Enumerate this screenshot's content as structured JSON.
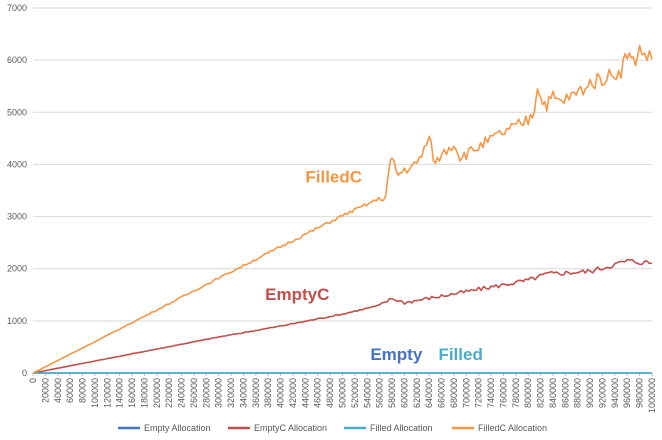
{
  "chart_data": {
    "type": "line",
    "title": "",
    "xlabel": "",
    "ylabel": "",
    "ylim": [
      0,
      7000
    ],
    "xlim": [
      0,
      1000000
    ],
    "y_ticks": [
      0,
      1000,
      2000,
      3000,
      4000,
      5000,
      6000,
      7000
    ],
    "x_tick_step": 20000,
    "grid": "horizontal",
    "legend_position": "bottom",
    "series": [
      {
        "name": "Empty Allocation",
        "color": "#4472C4",
        "x": [
          0,
          1000000
        ],
        "y": [
          0,
          0
        ]
      },
      {
        "name": "EmptyC Allocation",
        "color": "#C0504D",
        "x": [
          0,
          100000,
          200000,
          300000,
          400000,
          500000,
          560000,
          580000,
          600000,
          700000,
          800000,
          830000,
          900000,
          960000,
          1000000
        ],
        "y": [
          0,
          230,
          460,
          690,
          900,
          1130,
          1300,
          1430,
          1350,
          1560,
          1780,
          1900,
          1950,
          2150,
          2110
        ]
      },
      {
        "name": "Filled Allocation",
        "color": "#4BACC6",
        "x": [
          0,
          1000000
        ],
        "y": [
          0,
          0
        ]
      },
      {
        "name": "FilledC Allocation",
        "color": "#F79646",
        "x": [
          0,
          100000,
          200000,
          300000,
          400000,
          500000,
          570000,
          575000,
          580000,
          590000,
          600000,
          620000,
          640000,
          650000,
          660000,
          680000,
          690000,
          700000,
          750000,
          800000,
          810000,
          815000,
          820000,
          830000,
          840000,
          850000,
          870000,
          900000,
          950000,
          960000,
          970000,
          980000,
          1000000
        ],
        "y": [
          0,
          600,
          1210,
          1820,
          2420,
          3020,
          3400,
          3900,
          4100,
          3800,
          3900,
          4000,
          4500,
          4000,
          4200,
          4400,
          4150,
          4200,
          4550,
          4850,
          5050,
          5550,
          5250,
          5150,
          5300,
          5200,
          5300,
          5550,
          5800,
          6150,
          5950,
          6200,
          6020
        ]
      }
    ],
    "annotations": [
      {
        "text": "FilledC",
        "x": 440000,
        "y": 3650,
        "color": "#F79646"
      },
      {
        "text": "EmptyC",
        "x": 375000,
        "y": 1400,
        "color": "#C0504D"
      },
      {
        "text": "Empty",
        "x": 545000,
        "y": 250,
        "color": "#4472C4"
      },
      {
        "text": "Filled",
        "x": 655000,
        "y": 250,
        "color": "#4BACC6"
      }
    ]
  }
}
